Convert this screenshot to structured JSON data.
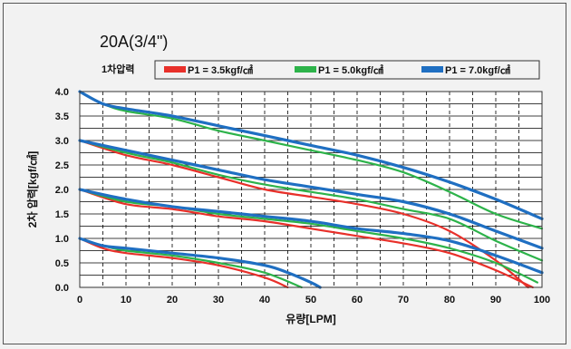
{
  "chart_data": {
    "type": "line",
    "title": "20A(3/4\")",
    "legend_title": "1차압력",
    "legend_position": "top-right",
    "xlabel": "유량[LPM]",
    "ylabel": "2차 압력[kgf/㎠]",
    "xlim": [
      0,
      100
    ],
    "ylim": [
      0,
      4.0
    ],
    "x_ticks": [
      "0",
      "10",
      "20",
      "30",
      "40",
      "50",
      "60",
      "70",
      "80",
      "90",
      "100"
    ],
    "y_ticks": [
      "0.0",
      "0.5",
      "1.0",
      "1.5",
      "2.0",
      "2.5",
      "3.0",
      "3.5",
      "4.0"
    ],
    "grid": "vertical dashed every 5 LPM; horizontal every 0.25 kgf/㎠",
    "colors": {
      "P1 = 3.5kgf/㎠": "#e8302a",
      "P1 = 5.0kgf/㎠": "#2db34a",
      "P1 = 7.0kgf/㎠": "#1f6fc2"
    },
    "series": [
      {
        "name": "P1 = 3.5kgf/㎠",
        "group": "set 1.0",
        "x": [
          0,
          5,
          10,
          20,
          30,
          40,
          45
        ],
        "y": [
          1.0,
          0.8,
          0.7,
          0.6,
          0.45,
          0.2,
          0.0
        ]
      },
      {
        "name": "P1 = 3.5kgf/㎠",
        "group": "set 2.0",
        "x": [
          0,
          10,
          20,
          30,
          40,
          50,
          60,
          70,
          80,
          90,
          98
        ],
        "y": [
          2.0,
          1.7,
          1.6,
          1.45,
          1.35,
          1.2,
          1.05,
          0.9,
          0.7,
          0.35,
          0.0
        ]
      },
      {
        "name": "P1 = 3.5kgf/㎠",
        "group": "set 3.0",
        "x": [
          0,
          10,
          20,
          30,
          40,
          50,
          60,
          70,
          80,
          90,
          97
        ],
        "y": [
          3.0,
          2.7,
          2.5,
          2.25,
          2.0,
          1.85,
          1.7,
          1.5,
          1.15,
          0.55,
          0.0
        ]
      },
      {
        "name": "P1 = 5.0kgf/㎠",
        "group": "set 1.0",
        "x": [
          0,
          5,
          10,
          20,
          30,
          40,
          48
        ],
        "y": [
          1.0,
          0.85,
          0.75,
          0.65,
          0.5,
          0.3,
          0.0
        ]
      },
      {
        "name": "P1 = 5.0kgf/㎠",
        "group": "set 2.0",
        "x": [
          0,
          10,
          20,
          30,
          40,
          50,
          60,
          70,
          80,
          90,
          99
        ],
        "y": [
          2.0,
          1.75,
          1.65,
          1.5,
          1.4,
          1.3,
          1.15,
          1.0,
          0.8,
          0.5,
          0.1
        ]
      },
      {
        "name": "P1 = 5.0kgf/㎠",
        "group": "set 3.0",
        "x": [
          0,
          10,
          20,
          30,
          40,
          50,
          60,
          70,
          80,
          90,
          100
        ],
        "y": [
          3.0,
          2.75,
          2.55,
          2.3,
          2.1,
          1.95,
          1.8,
          1.6,
          1.4,
          0.95,
          0.55
        ]
      },
      {
        "name": "P1 = 5.0kgf/㎠",
        "group": "set 4.0",
        "x": [
          0,
          5,
          10,
          20,
          30,
          40,
          50,
          60,
          70,
          80,
          90,
          100
        ],
        "y": [
          4.0,
          3.75,
          3.6,
          3.45,
          3.2,
          3.0,
          2.8,
          2.6,
          2.35,
          1.95,
          1.5,
          1.2
        ]
      },
      {
        "name": "P1 = 7.0kgf/㎠",
        "group": "set 1.0",
        "x": [
          0,
          5,
          10,
          20,
          30,
          40,
          45,
          50,
          52
        ],
        "y": [
          1.0,
          0.85,
          0.8,
          0.7,
          0.6,
          0.45,
          0.3,
          0.1,
          0.0
        ]
      },
      {
        "name": "P1 = 7.0kgf/㎠",
        "group": "set 2.0",
        "x": [
          0,
          10,
          20,
          30,
          40,
          50,
          60,
          70,
          80,
          90,
          100
        ],
        "y": [
          2.0,
          1.8,
          1.65,
          1.55,
          1.45,
          1.35,
          1.2,
          1.1,
          0.95,
          0.65,
          0.3
        ]
      },
      {
        "name": "P1 = 7.0kgf/㎠",
        "group": "set 3.0",
        "x": [
          0,
          10,
          20,
          30,
          40,
          50,
          60,
          70,
          80,
          90,
          100
        ],
        "y": [
          3.0,
          2.8,
          2.6,
          2.4,
          2.2,
          2.05,
          1.9,
          1.75,
          1.5,
          1.15,
          0.8
        ]
      },
      {
        "name": "P1 = 7.0kgf/㎠",
        "group": "set 4.0",
        "x": [
          0,
          5,
          10,
          20,
          30,
          40,
          50,
          60,
          70,
          80,
          90,
          100
        ],
        "y": [
          4.0,
          3.75,
          3.65,
          3.5,
          3.3,
          3.1,
          2.9,
          2.7,
          2.45,
          2.15,
          1.8,
          1.4
        ]
      }
    ]
  }
}
